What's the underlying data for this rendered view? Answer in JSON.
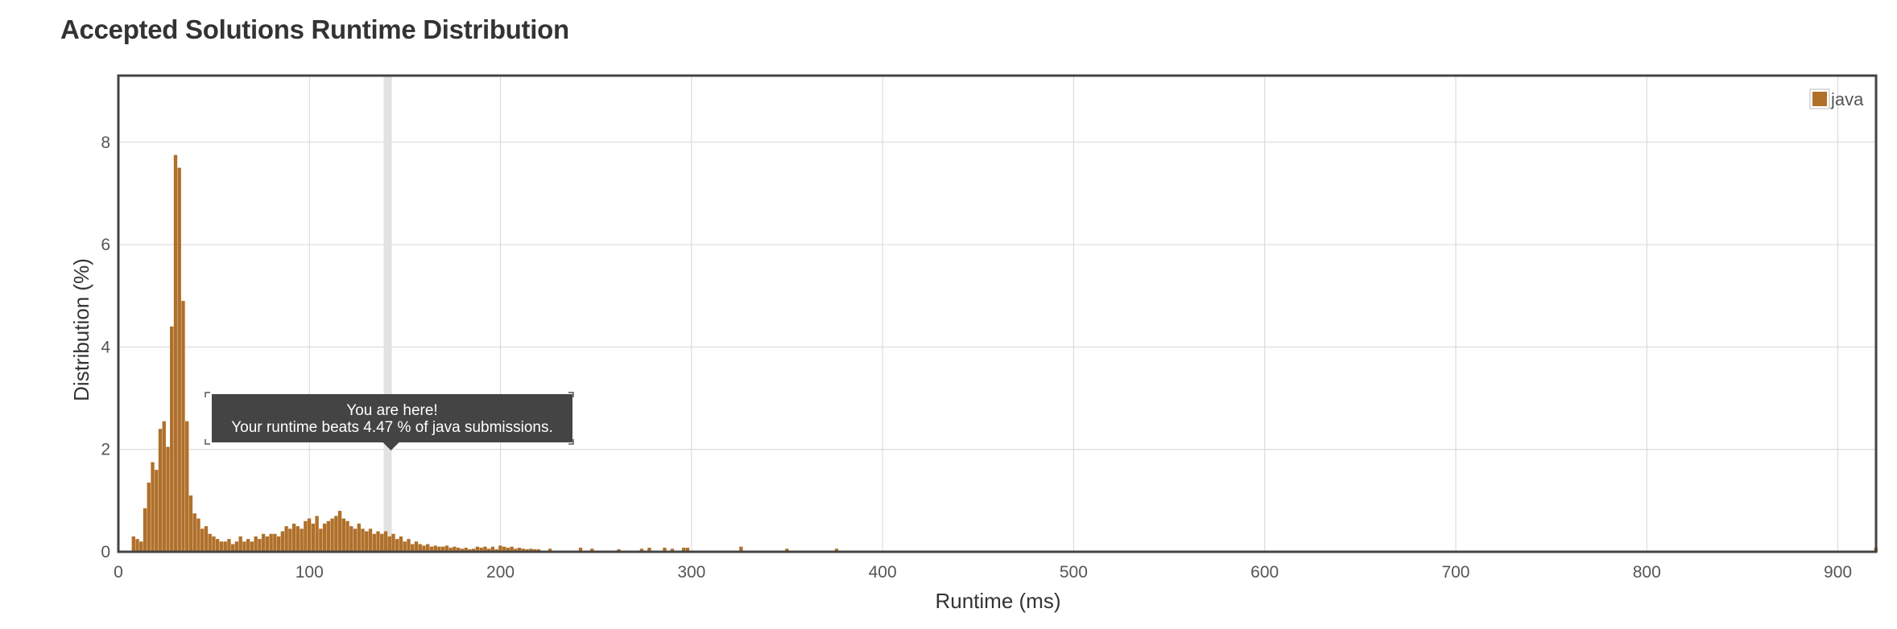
{
  "page": {
    "title": "Accepted Solutions Runtime Distribution"
  },
  "chart_data": {
    "type": "bar",
    "xlabel": "Runtime (ms)",
    "ylabel": "Distribution (%)",
    "xlim": [
      0,
      920
    ],
    "ylim": [
      0,
      9.3
    ],
    "x_ticks": [
      0,
      100,
      200,
      300,
      400,
      500,
      600,
      700,
      800,
      900
    ],
    "y_ticks": [
      0,
      2,
      4,
      6,
      8
    ],
    "grid": true,
    "legend_position": "top-right",
    "bar_width": 2,
    "series": [
      {
        "name": "java",
        "color": "#b0702a",
        "x": [
          8,
          10,
          12,
          14,
          16,
          18,
          20,
          22,
          24,
          26,
          28,
          30,
          32,
          34,
          36,
          38,
          40,
          42,
          44,
          46,
          48,
          50,
          52,
          54,
          56,
          58,
          60,
          62,
          64,
          66,
          68,
          70,
          72,
          74,
          76,
          78,
          80,
          82,
          84,
          86,
          88,
          90,
          92,
          94,
          96,
          98,
          100,
          102,
          104,
          106,
          108,
          110,
          112,
          114,
          116,
          118,
          120,
          122,
          124,
          126,
          128,
          130,
          132,
          134,
          136,
          138,
          140,
          142,
          144,
          146,
          148,
          150,
          152,
          154,
          156,
          158,
          160,
          162,
          164,
          166,
          168,
          170,
          172,
          174,
          176,
          178,
          180,
          182,
          184,
          186,
          188,
          190,
          192,
          194,
          196,
          198,
          200,
          202,
          204,
          206,
          208,
          210,
          212,
          214,
          216,
          218,
          220,
          226,
          242,
          248,
          262,
          274,
          278,
          286,
          290,
          296,
          298,
          326,
          350,
          376,
          920
        ],
        "values": [
          0.3,
          0.25,
          0.2,
          0.85,
          1.35,
          1.75,
          1.6,
          2.4,
          2.55,
          2.05,
          4.4,
          7.75,
          7.5,
          4.9,
          2.55,
          1.1,
          0.75,
          0.65,
          0.45,
          0.5,
          0.35,
          0.3,
          0.25,
          0.2,
          0.2,
          0.25,
          0.15,
          0.2,
          0.3,
          0.2,
          0.25,
          0.2,
          0.3,
          0.25,
          0.35,
          0.3,
          0.35,
          0.35,
          0.3,
          0.4,
          0.5,
          0.45,
          0.55,
          0.5,
          0.45,
          0.6,
          0.65,
          0.55,
          0.7,
          0.45,
          0.55,
          0.6,
          0.65,
          0.7,
          0.8,
          0.65,
          0.6,
          0.5,
          0.45,
          0.55,
          0.45,
          0.4,
          0.45,
          0.35,
          0.4,
          0.35,
          0.4,
          0.3,
          0.35,
          0.25,
          0.3,
          0.2,
          0.25,
          0.15,
          0.2,
          0.15,
          0.12,
          0.15,
          0.1,
          0.12,
          0.1,
          0.1,
          0.12,
          0.08,
          0.1,
          0.08,
          0.06,
          0.08,
          0.05,
          0.06,
          0.1,
          0.08,
          0.1,
          0.06,
          0.1,
          0.05,
          0.12,
          0.1,
          0.08,
          0.1,
          0.06,
          0.08,
          0.06,
          0.05,
          0.06,
          0.05,
          0.05,
          0.06,
          0.08,
          0.06,
          0.05,
          0.06,
          0.08,
          0.08,
          0.06,
          0.08,
          0.08,
          0.1,
          0.06,
          0.06,
          0.08
        ]
      }
    ],
    "highlight_x": 141,
    "tooltip": {
      "line1": "You are here!",
      "line2": "Your runtime beats 4.47 % of java submissions."
    }
  }
}
